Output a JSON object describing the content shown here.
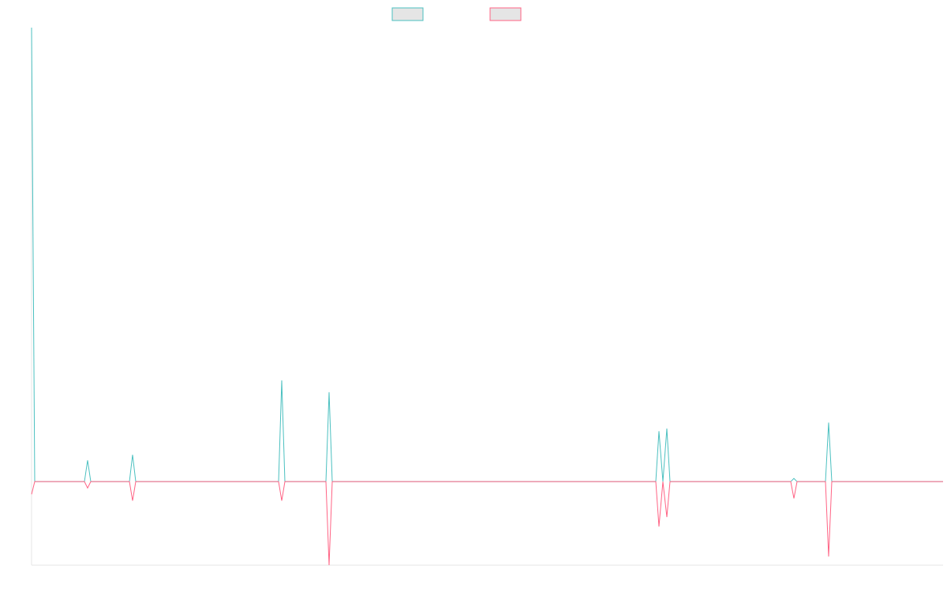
{
  "chart_data": {
    "type": "line",
    "x": [
      0,
      4,
      67,
      71,
      75,
      124,
      128,
      132,
      313,
      317,
      321,
      373,
      377,
      381,
      791,
      795,
      800,
      805,
      809,
      962,
      966,
      970,
      1006,
      1010,
      1014,
      1155
    ],
    "xlim": [
      0,
      1155
    ],
    "ylim": [
      -18.4,
      100
    ],
    "series": [
      {
        "color": "#4bc0c0",
        "values": [
          100,
          0,
          0,
          4.7,
          0,
          0,
          5.9,
          0,
          0,
          22.3,
          0,
          0,
          19.7,
          0,
          0,
          11.1,
          0,
          11.7,
          0,
          0,
          0.7,
          0,
          0,
          13.0,
          0,
          0
        ]
      },
      {
        "color": "#ff6384",
        "values": [
          -2.8,
          0,
          0,
          -1.4,
          0,
          0,
          -4.2,
          0,
          0,
          -4.2,
          0,
          0,
          -18.4,
          0,
          0,
          -9.9,
          0,
          -7.8,
          0,
          0,
          -3.7,
          0,
          0,
          -16.5,
          0,
          0
        ]
      }
    ],
    "legend": "top"
  }
}
